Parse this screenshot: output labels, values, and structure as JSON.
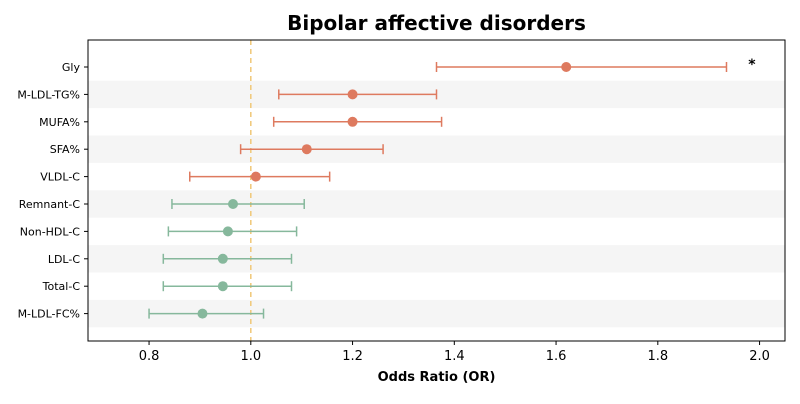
{
  "chart_data": {
    "type": "forest",
    "title": "Bipolar affective disorders",
    "xlabel": "Odds Ratio (OR)",
    "ylabel": "",
    "xlim": [
      0.68,
      2.05
    ],
    "xticks": [
      0.8,
      1.0,
      1.2,
      1.4,
      1.6,
      1.8,
      2.0
    ],
    "xtick_labels": [
      "0.8",
      "1.0",
      "1.2",
      "1.4",
      "1.6",
      "1.8",
      "2.0"
    ],
    "reference_line": 1.0,
    "reference_line_color": "#f0c878",
    "alternating_row_shading": true,
    "row_shade_color": "#f5f5f5",
    "colors": {
      "increased": "#de7a5f",
      "decreased": "#86b89c"
    },
    "rows": [
      {
        "label": "Gly",
        "or": 1.62,
        "lower": 1.365,
        "upper": 1.935,
        "direction": "increased",
        "significance": "*"
      },
      {
        "label": "M-LDL-TG%",
        "or": 1.2,
        "lower": 1.055,
        "upper": 1.365,
        "direction": "increased",
        "significance": ""
      },
      {
        "label": "MUFA%",
        "or": 1.2,
        "lower": 1.045,
        "upper": 1.375,
        "direction": "increased",
        "significance": ""
      },
      {
        "label": "SFA%",
        "or": 1.11,
        "lower": 0.98,
        "upper": 1.26,
        "direction": "increased",
        "significance": ""
      },
      {
        "label": "VLDL-C",
        "or": 1.01,
        "lower": 0.88,
        "upper": 1.155,
        "direction": "increased",
        "significance": ""
      },
      {
        "label": "Remnant-C",
        "or": 0.965,
        "lower": 0.845,
        "upper": 1.105,
        "direction": "decreased",
        "significance": ""
      },
      {
        "label": "Non-HDL-C",
        "or": 0.955,
        "lower": 0.838,
        "upper": 1.09,
        "direction": "decreased",
        "significance": ""
      },
      {
        "label": "LDL-C",
        "or": 0.945,
        "lower": 0.828,
        "upper": 1.08,
        "direction": "decreased",
        "significance": ""
      },
      {
        "label": "Total-C",
        "or": 0.945,
        "lower": 0.828,
        "upper": 1.08,
        "direction": "decreased",
        "significance": ""
      },
      {
        "label": "M-LDL-FC%",
        "or": 0.905,
        "lower": 0.8,
        "upper": 1.025,
        "direction": "decreased",
        "significance": ""
      }
    ]
  }
}
